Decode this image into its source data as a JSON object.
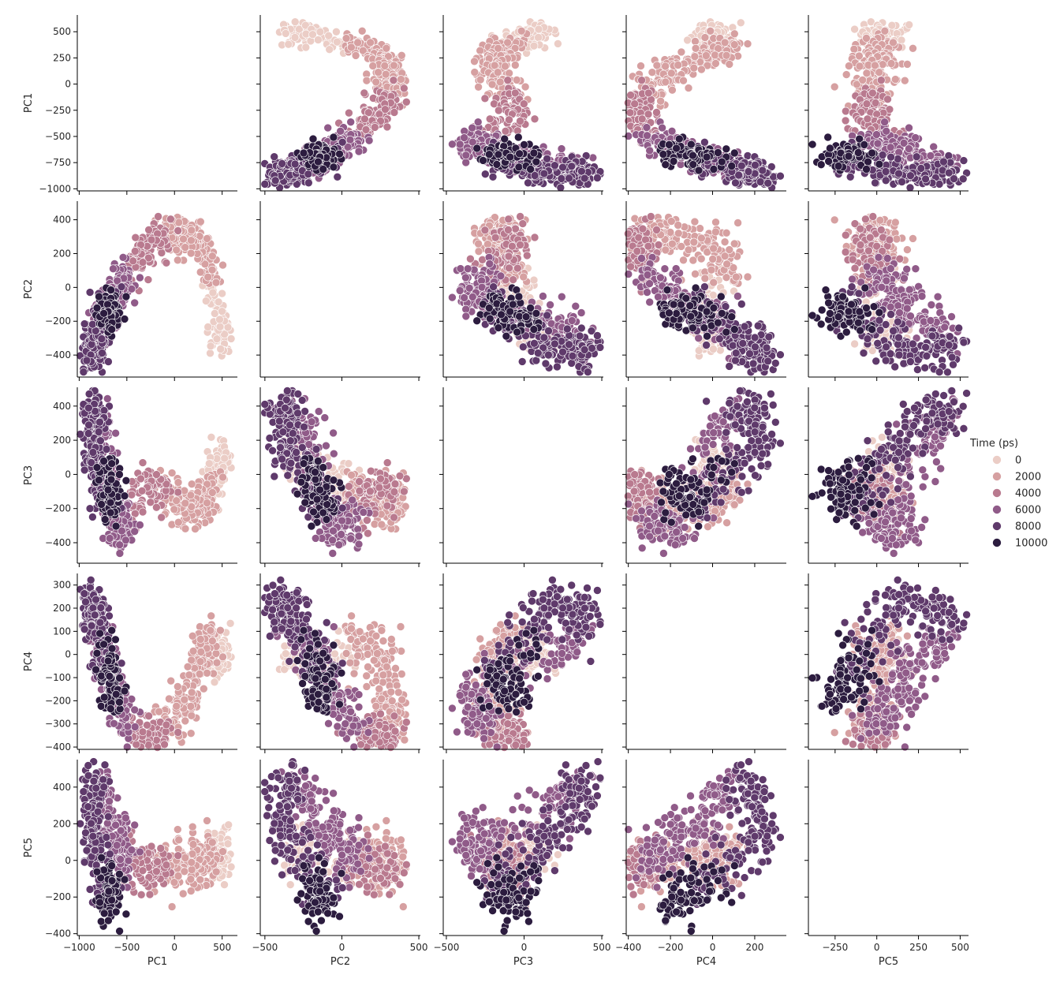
{
  "chart_data": {
    "type": "scatter",
    "figure_kind": "pairplot",
    "variables": [
      "PC1",
      "PC2",
      "PC3",
      "PC4",
      "PC5"
    ],
    "hue": {
      "title": "Time (ps)",
      "levels": [
        "0",
        "2000",
        "4000",
        "6000",
        "8000",
        "10000"
      ],
      "colors": [
        "#ebcdc6",
        "#d6a0a1",
        "#b97a8f",
        "#905b89",
        "#5f3a6b",
        "#2c1c3f"
      ]
    },
    "axes": {
      "PC1": {
        "lim": [
          -1020,
          660
        ],
        "ticks": [
          -1000,
          -750,
          -500,
          -250,
          0,
          250,
          500
        ],
        "xticks": [
          -1000,
          -500,
          0,
          500
        ]
      },
      "PC2": {
        "lim": [
          -530,
          510
        ],
        "ticks": [
          -400,
          -200,
          0,
          200,
          400
        ],
        "xticks": [
          -500,
          0,
          500
        ]
      },
      "PC3": {
        "lim": [
          -520,
          510
        ],
        "ticks": [
          -400,
          -200,
          0,
          200,
          400
        ],
        "xticks": [
          -500,
          0,
          500
        ]
      },
      "PC4": {
        "lim": [
          -410,
          350
        ],
        "ticks": [
          -400,
          -300,
          -200,
          -100,
          0,
          100,
          200,
          300
        ],
        "xticks": [
          -400,
          -200,
          0,
          200
        ]
      },
      "PC5": {
        "lim": [
          -410,
          550
        ],
        "ticks": [
          -400,
          -200,
          0,
          200,
          400
        ],
        "xticks": [
          -250,
          0,
          250,
          500
        ]
      }
    },
    "legend_placement": "right",
    "grid": false,
    "diagonal": "empty",
    "stages": [
      {
        "t": 0,
        "PC1": 500,
        "PC2": -350,
        "PC3": 50,
        "PC4": 0,
        "PC5": 50
      },
      {
        "t": 500,
        "PC1": 480,
        "PC2": -250,
        "PC3": 90,
        "PC4": 20,
        "PC5": 30
      },
      {
        "t": 1000,
        "PC1": 380,
        "PC2": 50,
        "PC3": -100,
        "PC4": 30,
        "PC5": 10
      },
      {
        "t": 1500,
        "PC1": 300,
        "PC2": 250,
        "PC3": -180,
        "PC4": 40,
        "PC5": 0
      },
      {
        "t": 2000,
        "PC1": 200,
        "PC2": 300,
        "PC3": -200,
        "PC4": -100,
        "PC5": -20
      },
      {
        "t": 2500,
        "PC1": 50,
        "PC2": 300,
        "PC3": -150,
        "PC4": -250,
        "PC5": -30
      },
      {
        "t": 3000,
        "PC1": -100,
        "PC2": 300,
        "PC3": -100,
        "PC4": -330,
        "PC5": -50
      },
      {
        "t": 4000,
        "PC1": -300,
        "PC2": 200,
        "PC3": -50,
        "PC4": -380,
        "PC5": -50
      },
      {
        "t": 5000,
        "PC1": -500,
        "PC2": 100,
        "PC3": -250,
        "PC4": -300,
        "PC5": 0
      },
      {
        "t": 5500,
        "PC1": -550,
        "PC2": 0,
        "PC3": -350,
        "PC4": -200,
        "PC5": 100
      },
      {
        "t": 6000,
        "PC1": -650,
        "PC2": -100,
        "PC3": -300,
        "PC4": -100,
        "PC5": 150
      },
      {
        "t": 6500,
        "PC1": -750,
        "PC2": -200,
        "PC3": 200,
        "PC4": 0,
        "PC5": 300
      },
      {
        "t": 7000,
        "PC1": -800,
        "PC2": -300,
        "PC3": 350,
        "PC4": 100,
        "PC5": 450
      },
      {
        "t": 7500,
        "PC1": -850,
        "PC2": -400,
        "PC3": 400,
        "PC4": 200,
        "PC5": 380
      },
      {
        "t": 8000,
        "PC1": -900,
        "PC2": -380,
        "PC3": 200,
        "PC4": 250,
        "PC5": 150
      },
      {
        "t": 8500,
        "PC1": -800,
        "PC2": -250,
        "PC3": 0,
        "PC4": 100,
        "PC5": 0
      },
      {
        "t": 9000,
        "PC1": -700,
        "PC2": -100,
        "PC3": -200,
        "PC4": -100,
        "PC5": -150
      },
      {
        "t": 9500,
        "PC1": -650,
        "PC2": -150,
        "PC3": -100,
        "PC4": -200,
        "PC5": -250
      },
      {
        "t": 10000,
        "PC1": -700,
        "PC2": -200,
        "PC3": 50,
        "PC4": 50,
        "PC5": -100
      }
    ],
    "spread": {
      "PC1": 60,
      "PC2": 60,
      "PC3": 60,
      "PC4": 50,
      "PC5": 70
    },
    "samples_per_segment": 42
  }
}
